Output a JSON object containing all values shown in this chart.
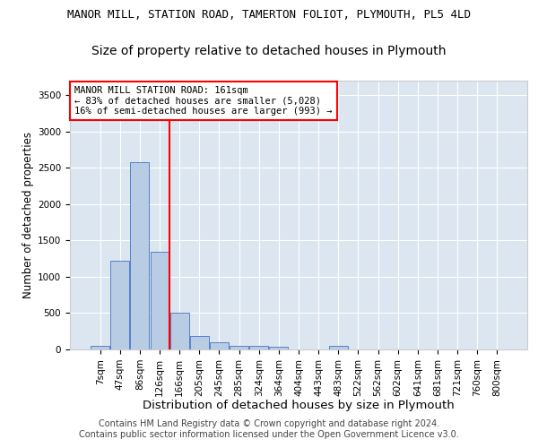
{
  "title": "MANOR MILL, STATION ROAD, TAMERTON FOLIOT, PLYMOUTH, PL5 4LD",
  "subtitle": "Size of property relative to detached houses in Plymouth",
  "xlabel": "Distribution of detached houses by size in Plymouth",
  "ylabel": "Number of detached properties",
  "categories": [
    "7sqm",
    "47sqm",
    "86sqm",
    "126sqm",
    "166sqm",
    "205sqm",
    "245sqm",
    "285sqm",
    "324sqm",
    "364sqm",
    "404sqm",
    "443sqm",
    "483sqm",
    "522sqm",
    "562sqm",
    "602sqm",
    "641sqm",
    "681sqm",
    "721sqm",
    "760sqm",
    "800sqm"
  ],
  "values": [
    55,
    1220,
    2580,
    1340,
    500,
    185,
    100,
    50,
    45,
    35,
    0,
    0,
    50,
    0,
    0,
    0,
    0,
    0,
    0,
    0,
    0
  ],
  "bar_color": "#b8cce4",
  "bar_edge_color": "#4472c4",
  "property_line_color": "red",
  "property_line_x": 4.0,
  "annotation_text": "MANOR MILL STATION ROAD: 161sqm\n← 83% of detached houses are smaller (5,028)\n16% of semi-detached houses are larger (993) →",
  "annotation_box_color": "white",
  "annotation_box_edge_color": "red",
  "ylim": [
    0,
    3700
  ],
  "yticks": [
    0,
    500,
    1000,
    1500,
    2000,
    2500,
    3000,
    3500
  ],
  "background_color": "#dce6f1",
  "grid_color": "white",
  "footer_line1": "Contains HM Land Registry data © Crown copyright and database right 2024.",
  "footer_line2": "Contains public sector information licensed under the Open Government Licence v3.0.",
  "title_fontsize": 9,
  "subtitle_fontsize": 10,
  "xlabel_fontsize": 9.5,
  "ylabel_fontsize": 8.5,
  "tick_fontsize": 7.5,
  "annotation_fontsize": 7.5,
  "footer_fontsize": 7
}
